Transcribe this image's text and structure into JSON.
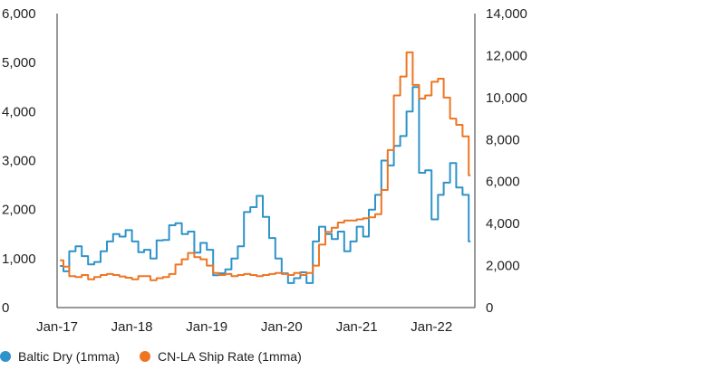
{
  "chart_data": {
    "type": "line",
    "title": "",
    "xlabel": "",
    "ylabel_left": "",
    "ylabel_right": "",
    "x_ticks": [
      "Jan-17",
      "Jan-18",
      "Jan-19",
      "Jan-20",
      "Jan-21",
      "Jan-22"
    ],
    "y_left": {
      "min": 0,
      "max": 6000,
      "ticks": [
        "0",
        "1,000",
        "2,000",
        "3,000",
        "4,000",
        "5,000",
        "6,000"
      ]
    },
    "y_right": {
      "min": 0,
      "max": 14000,
      "ticks": [
        "0",
        "2,000",
        "4,000",
        "6,000",
        "8,000",
        "10,000",
        "12,000",
        "14,000"
      ]
    },
    "x_range": [
      "2017-01",
      "2022-07"
    ],
    "grid": false,
    "legend_position": "bottom-left",
    "series": [
      {
        "name": "Baltic Dry (1mma)",
        "color": "#2e93c9",
        "axis": "left",
        "points": [
          [
            "2017-01-15",
            850
          ],
          [
            "2017-02-01",
            740
          ],
          [
            "2017-03-01",
            1150
          ],
          [
            "2017-04-01",
            1250
          ],
          [
            "2017-05-01",
            1050
          ],
          [
            "2017-06-01",
            880
          ],
          [
            "2017-07-01",
            930
          ],
          [
            "2017-08-01",
            1150
          ],
          [
            "2017-09-01",
            1350
          ],
          [
            "2017-10-01",
            1500
          ],
          [
            "2017-11-01",
            1450
          ],
          [
            "2017-12-01",
            1580
          ],
          [
            "2018-01-01",
            1350
          ],
          [
            "2018-02-01",
            1130
          ],
          [
            "2018-03-01",
            1180
          ],
          [
            "2018-04-01",
            1000
          ],
          [
            "2018-05-01",
            1370
          ],
          [
            "2018-06-01",
            1380
          ],
          [
            "2018-07-01",
            1680
          ],
          [
            "2018-08-01",
            1720
          ],
          [
            "2018-09-01",
            1500
          ],
          [
            "2018-10-01",
            1550
          ],
          [
            "2018-11-01",
            1120
          ],
          [
            "2018-12-01",
            1320
          ],
          [
            "2019-01-01",
            1180
          ],
          [
            "2019-02-01",
            660
          ],
          [
            "2019-03-01",
            700
          ],
          [
            "2019-04-01",
            780
          ],
          [
            "2019-05-01",
            1000
          ],
          [
            "2019-06-01",
            1250
          ],
          [
            "2019-07-01",
            1950
          ],
          [
            "2019-08-01",
            2050
          ],
          [
            "2019-09-01",
            2280
          ],
          [
            "2019-10-01",
            1850
          ],
          [
            "2019-11-01",
            1420
          ],
          [
            "2019-12-01",
            1000
          ],
          [
            "2020-01-01",
            700
          ],
          [
            "2020-02-01",
            500
          ],
          [
            "2020-03-01",
            600
          ],
          [
            "2020-04-01",
            720
          ],
          [
            "2020-05-01",
            500
          ],
          [
            "2020-06-01",
            1350
          ],
          [
            "2020-07-01",
            1650
          ],
          [
            "2020-08-01",
            1500
          ],
          [
            "2020-09-01",
            1400
          ],
          [
            "2020-10-01",
            1550
          ],
          [
            "2020-11-01",
            1150
          ],
          [
            "2020-12-01",
            1350
          ],
          [
            "2021-01-01",
            1650
          ],
          [
            "2021-02-01",
            1450
          ],
          [
            "2021-03-01",
            2000
          ],
          [
            "2021-04-01",
            2300
          ],
          [
            "2021-05-01",
            3000
          ],
          [
            "2021-06-01",
            2900
          ],
          [
            "2021-07-01",
            3300
          ],
          [
            "2021-08-01",
            3500
          ],
          [
            "2021-09-01",
            4000
          ],
          [
            "2021-10-01",
            4500
          ],
          [
            "2021-11-01",
            2750
          ],
          [
            "2021-12-01",
            2800
          ],
          [
            "2022-01-01",
            1800
          ],
          [
            "2022-02-01",
            2300
          ],
          [
            "2022-03-01",
            2550
          ],
          [
            "2022-04-01",
            2950
          ],
          [
            "2022-05-01",
            2450
          ],
          [
            "2022-06-01",
            2300
          ],
          [
            "2022-07-01",
            1350
          ]
        ]
      },
      {
        "name": "CN-LA Ship Rate (1mma)",
        "color": "#ee7623",
        "axis": "right",
        "points": [
          [
            "2017-01-15",
            2250
          ],
          [
            "2017-02-01",
            1950
          ],
          [
            "2017-03-01",
            1500
          ],
          [
            "2017-04-01",
            1450
          ],
          [
            "2017-05-01",
            1550
          ],
          [
            "2017-06-01",
            1350
          ],
          [
            "2017-07-01",
            1450
          ],
          [
            "2017-08-01",
            1550
          ],
          [
            "2017-09-01",
            1600
          ],
          [
            "2017-10-01",
            1550
          ],
          [
            "2017-11-01",
            1480
          ],
          [
            "2017-12-01",
            1420
          ],
          [
            "2018-01-01",
            1350
          ],
          [
            "2018-02-01",
            1500
          ],
          [
            "2018-03-01",
            1500
          ],
          [
            "2018-04-01",
            1300
          ],
          [
            "2018-05-01",
            1400
          ],
          [
            "2018-06-01",
            1450
          ],
          [
            "2018-07-01",
            1600
          ],
          [
            "2018-08-01",
            2050
          ],
          [
            "2018-09-01",
            2300
          ],
          [
            "2018-10-01",
            2600
          ],
          [
            "2018-11-01",
            2400
          ],
          [
            "2018-12-01",
            2300
          ],
          [
            "2019-01-01",
            2000
          ],
          [
            "2019-02-01",
            1650
          ],
          [
            "2019-03-01",
            1550
          ],
          [
            "2019-04-01",
            1600
          ],
          [
            "2019-05-01",
            1500
          ],
          [
            "2019-06-01",
            1550
          ],
          [
            "2019-07-01",
            1600
          ],
          [
            "2019-08-01",
            1550
          ],
          [
            "2019-09-01",
            1500
          ],
          [
            "2019-10-01",
            1550
          ],
          [
            "2019-11-01",
            1600
          ],
          [
            "2019-12-01",
            1650
          ],
          [
            "2020-01-01",
            1600
          ],
          [
            "2020-02-01",
            1550
          ],
          [
            "2020-03-01",
            1650
          ],
          [
            "2020-04-01",
            1550
          ],
          [
            "2020-05-01",
            1650
          ],
          [
            "2020-06-01",
            2000
          ],
          [
            "2020-07-01",
            3000
          ],
          [
            "2020-08-01",
            3600
          ],
          [
            "2020-09-01",
            3800
          ],
          [
            "2020-10-01",
            4050
          ],
          [
            "2020-11-01",
            4150
          ],
          [
            "2020-12-01",
            4150
          ],
          [
            "2021-01-01",
            4200
          ],
          [
            "2021-02-01",
            4250
          ],
          [
            "2021-03-01",
            4300
          ],
          [
            "2021-04-01",
            4450
          ],
          [
            "2021-05-01",
            5600
          ],
          [
            "2021-06-01",
            7500
          ],
          [
            "2021-07-01",
            10100
          ],
          [
            "2021-08-01",
            11000
          ],
          [
            "2021-09-01",
            12150
          ],
          [
            "2021-10-01",
            10600
          ],
          [
            "2021-11-01",
            9950
          ],
          [
            "2021-12-01",
            10100
          ],
          [
            "2022-01-01",
            10750
          ],
          [
            "2022-02-01",
            10900
          ],
          [
            "2022-03-01",
            10000
          ],
          [
            "2022-04-01",
            9000
          ],
          [
            "2022-05-01",
            8700
          ],
          [
            "2022-06-01",
            8150
          ],
          [
            "2022-07-01",
            6300
          ]
        ]
      }
    ]
  }
}
